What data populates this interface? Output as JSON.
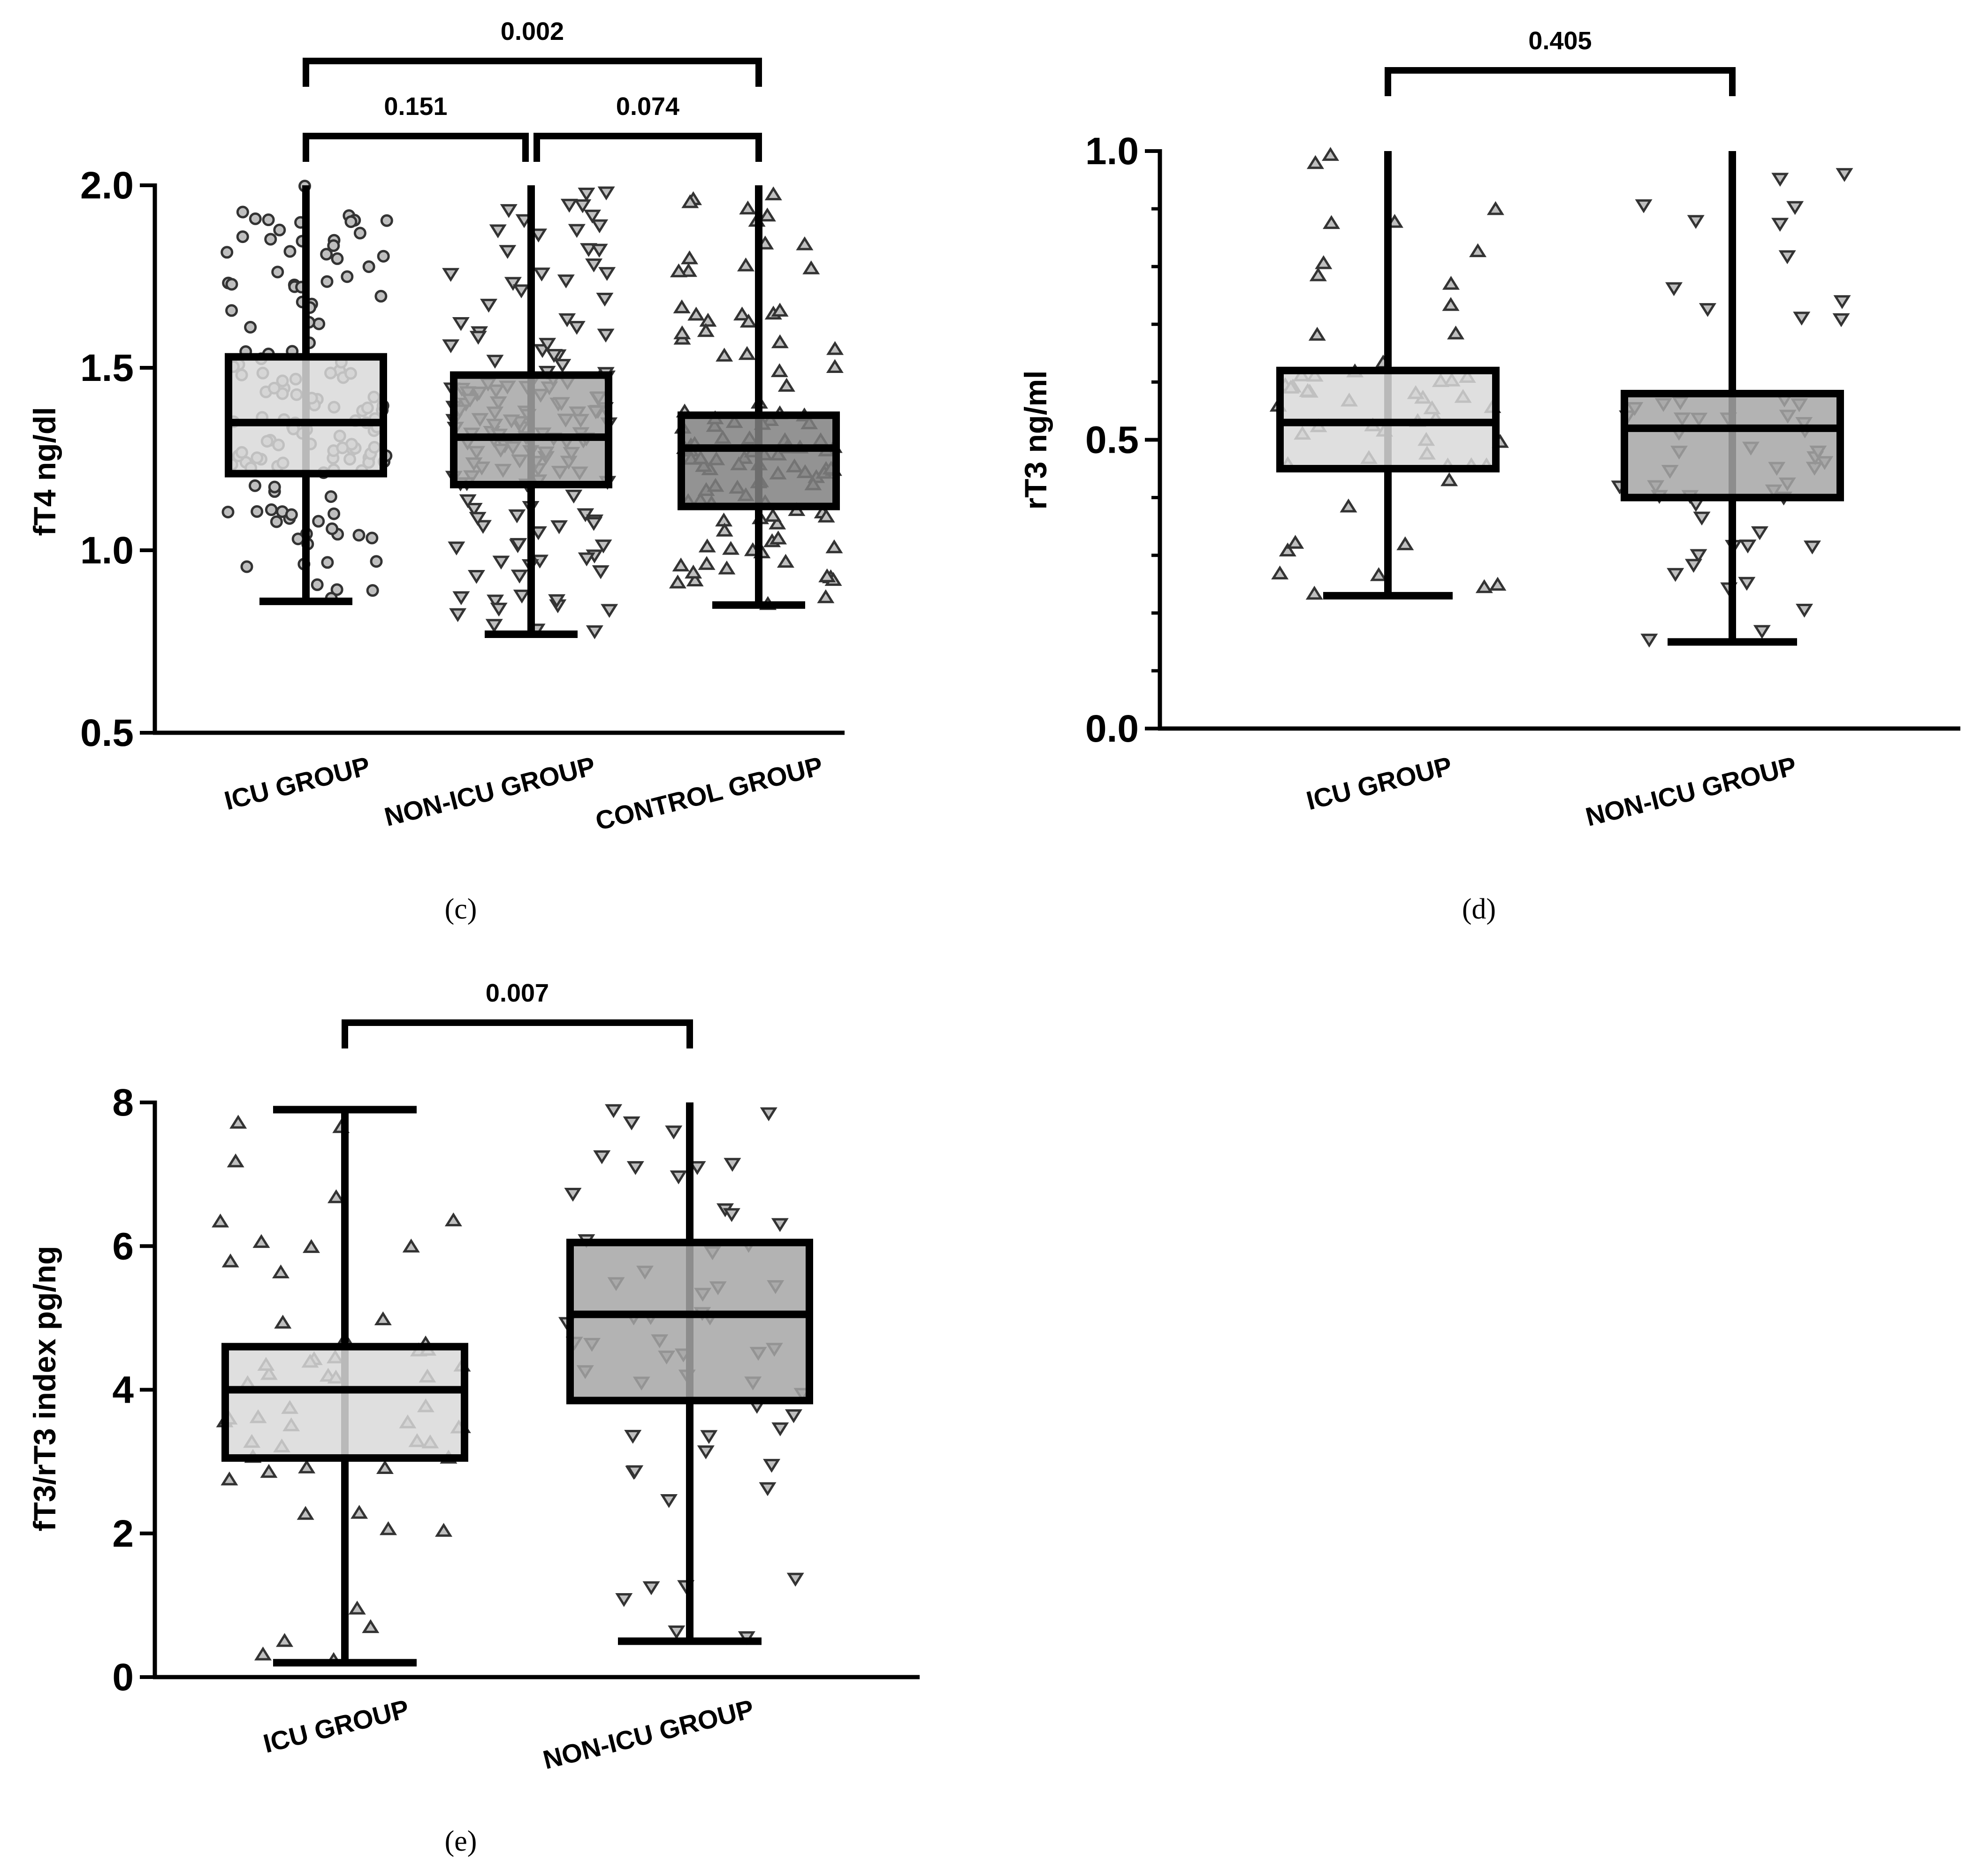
{
  "chart_data": [
    {
      "panel_label": "(c)",
      "type": "box",
      "ylabel": "fT4 ng/dl",
      "ylim": [
        0.5,
        2.0
      ],
      "yticks": [
        "0.5",
        "1.0",
        "1.5",
        "2.0"
      ],
      "categories": [
        "ICU GROUP",
        "NON-ICU GROUP",
        "CONTROL GROUP"
      ],
      "boxes": [
        {
          "category": "ICU GROUP",
          "min": 0.86,
          "q1": 1.21,
          "median": 1.35,
          "q3": 1.53,
          "max": 2.0,
          "fill": "#d9d9d9",
          "marker": "circle",
          "n": 140
        },
        {
          "category": "NON-ICU GROUP",
          "min": 0.77,
          "q1": 1.18,
          "median": 1.31,
          "q3": 1.48,
          "max": 2.0,
          "fill": "#a6a6a6",
          "marker": "triangle-down",
          "n": 150
        },
        {
          "category": "CONTROL GROUP",
          "min": 0.85,
          "q1": 1.12,
          "median": 1.28,
          "q3": 1.37,
          "max": 2.0,
          "fill": "#808080",
          "marker": "triangle-up",
          "n": 110
        }
      ],
      "comparisons": [
        {
          "from": 0,
          "to": 1,
          "label": "0.151"
        },
        {
          "from": 1,
          "to": 2,
          "label": "0.074"
        },
        {
          "from": 0,
          "to": 2,
          "label": "0.002"
        }
      ]
    },
    {
      "panel_label": "(d)",
      "type": "box",
      "ylabel": "rT3 ng/ml",
      "ylim": [
        0.0,
        1.0
      ],
      "yticks": [
        "0.0",
        "0.5",
        "1.0"
      ],
      "categories": [
        "ICU GROUP",
        "NON-ICU GROUP"
      ],
      "boxes": [
        {
          "category": "ICU GROUP",
          "min": 0.23,
          "q1": 0.45,
          "median": 0.53,
          "q3": 0.62,
          "max": 1.0,
          "fill": "#d9d9d9",
          "marker": "triangle-up",
          "n": 55
        },
        {
          "category": "NON-ICU GROUP",
          "min": 0.15,
          "q1": 0.4,
          "median": 0.52,
          "q3": 0.58,
          "max": 1.0,
          "fill": "#a6a6a6",
          "marker": "triangle-down",
          "n": 55
        }
      ],
      "comparisons": [
        {
          "from": 0,
          "to": 1,
          "label": "0.405"
        }
      ]
    },
    {
      "panel_label": "(e)",
      "type": "box",
      "ylabel": "fT3/rT3 index pg/ng",
      "ylim": [
        0,
        8
      ],
      "yticks": [
        "0",
        "2",
        "4",
        "6",
        "8"
      ],
      "categories": [
        "ICU GROUP",
        "NON-ICU GROUP"
      ],
      "boxes": [
        {
          "category": "ICU GROUP",
          "min": 0.2,
          "q1": 3.05,
          "median": 4.0,
          "q3": 4.6,
          "max": 7.9,
          "fill": "#d9d9d9",
          "marker": "triangle-up",
          "n": 55
        },
        {
          "category": "NON-ICU GROUP",
          "min": 0.5,
          "q1": 3.85,
          "median": 5.05,
          "q3": 6.05,
          "max": 8.0,
          "fill": "#a6a6a6",
          "marker": "triangle-down",
          "n": 55
        }
      ],
      "comparisons": [
        {
          "from": 0,
          "to": 1,
          "label": "0.007"
        }
      ]
    }
  ]
}
